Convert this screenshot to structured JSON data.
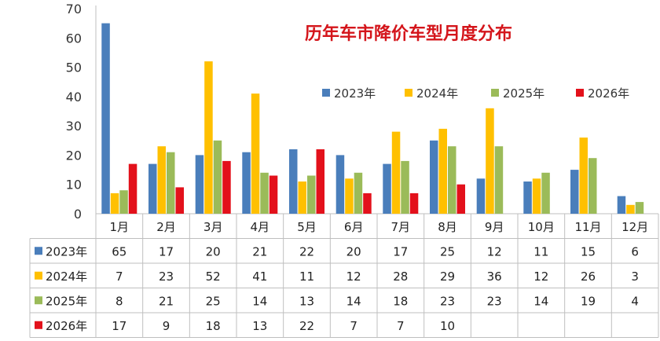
{
  "chart_data": {
    "type": "bar",
    "title": "历年车市降价车型月度分布",
    "categories": [
      "1月",
      "2月",
      "3月",
      "4月",
      "5月",
      "6月",
      "7月",
      "8月",
      "9月",
      "10月",
      "11月",
      "12月"
    ],
    "ylim": [
      0,
      70
    ],
    "yticks": [
      0,
      10,
      20,
      30,
      40,
      50,
      60,
      70
    ],
    "grid": false,
    "legend_position": "top-right",
    "series": [
      {
        "name": "2023年",
        "color": "#4a7ebb",
        "values": [
          65,
          17,
          20,
          21,
          22,
          20,
          17,
          25,
          12,
          11,
          15,
          6
        ]
      },
      {
        "name": "2024年",
        "color": "#ffc000",
        "values": [
          7,
          23,
          52,
          41,
          11,
          12,
          28,
          29,
          36,
          12,
          26,
          3
        ]
      },
      {
        "name": "2025年",
        "color": "#9bbb59",
        "values": [
          8,
          21,
          25,
          14,
          13,
          14,
          18,
          23,
          23,
          14,
          19,
          4
        ]
      },
      {
        "name": "2026年",
        "color": "#e3111b",
        "values": [
          17,
          9,
          18,
          13,
          22,
          7,
          7,
          10,
          null,
          null,
          null,
          null
        ]
      }
    ]
  }
}
